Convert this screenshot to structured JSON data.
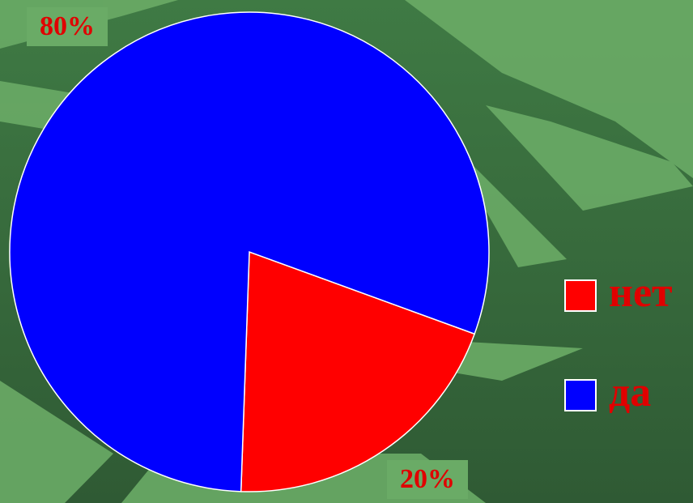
{
  "chart_data": {
    "type": "pie",
    "categories": [
      "нет",
      "да"
    ],
    "values": [
      20,
      80
    ],
    "value_labels": [
      "20%",
      "80%"
    ],
    "colors": [
      "#ff0000",
      "#0000ff"
    ],
    "legend": "right"
  }
}
